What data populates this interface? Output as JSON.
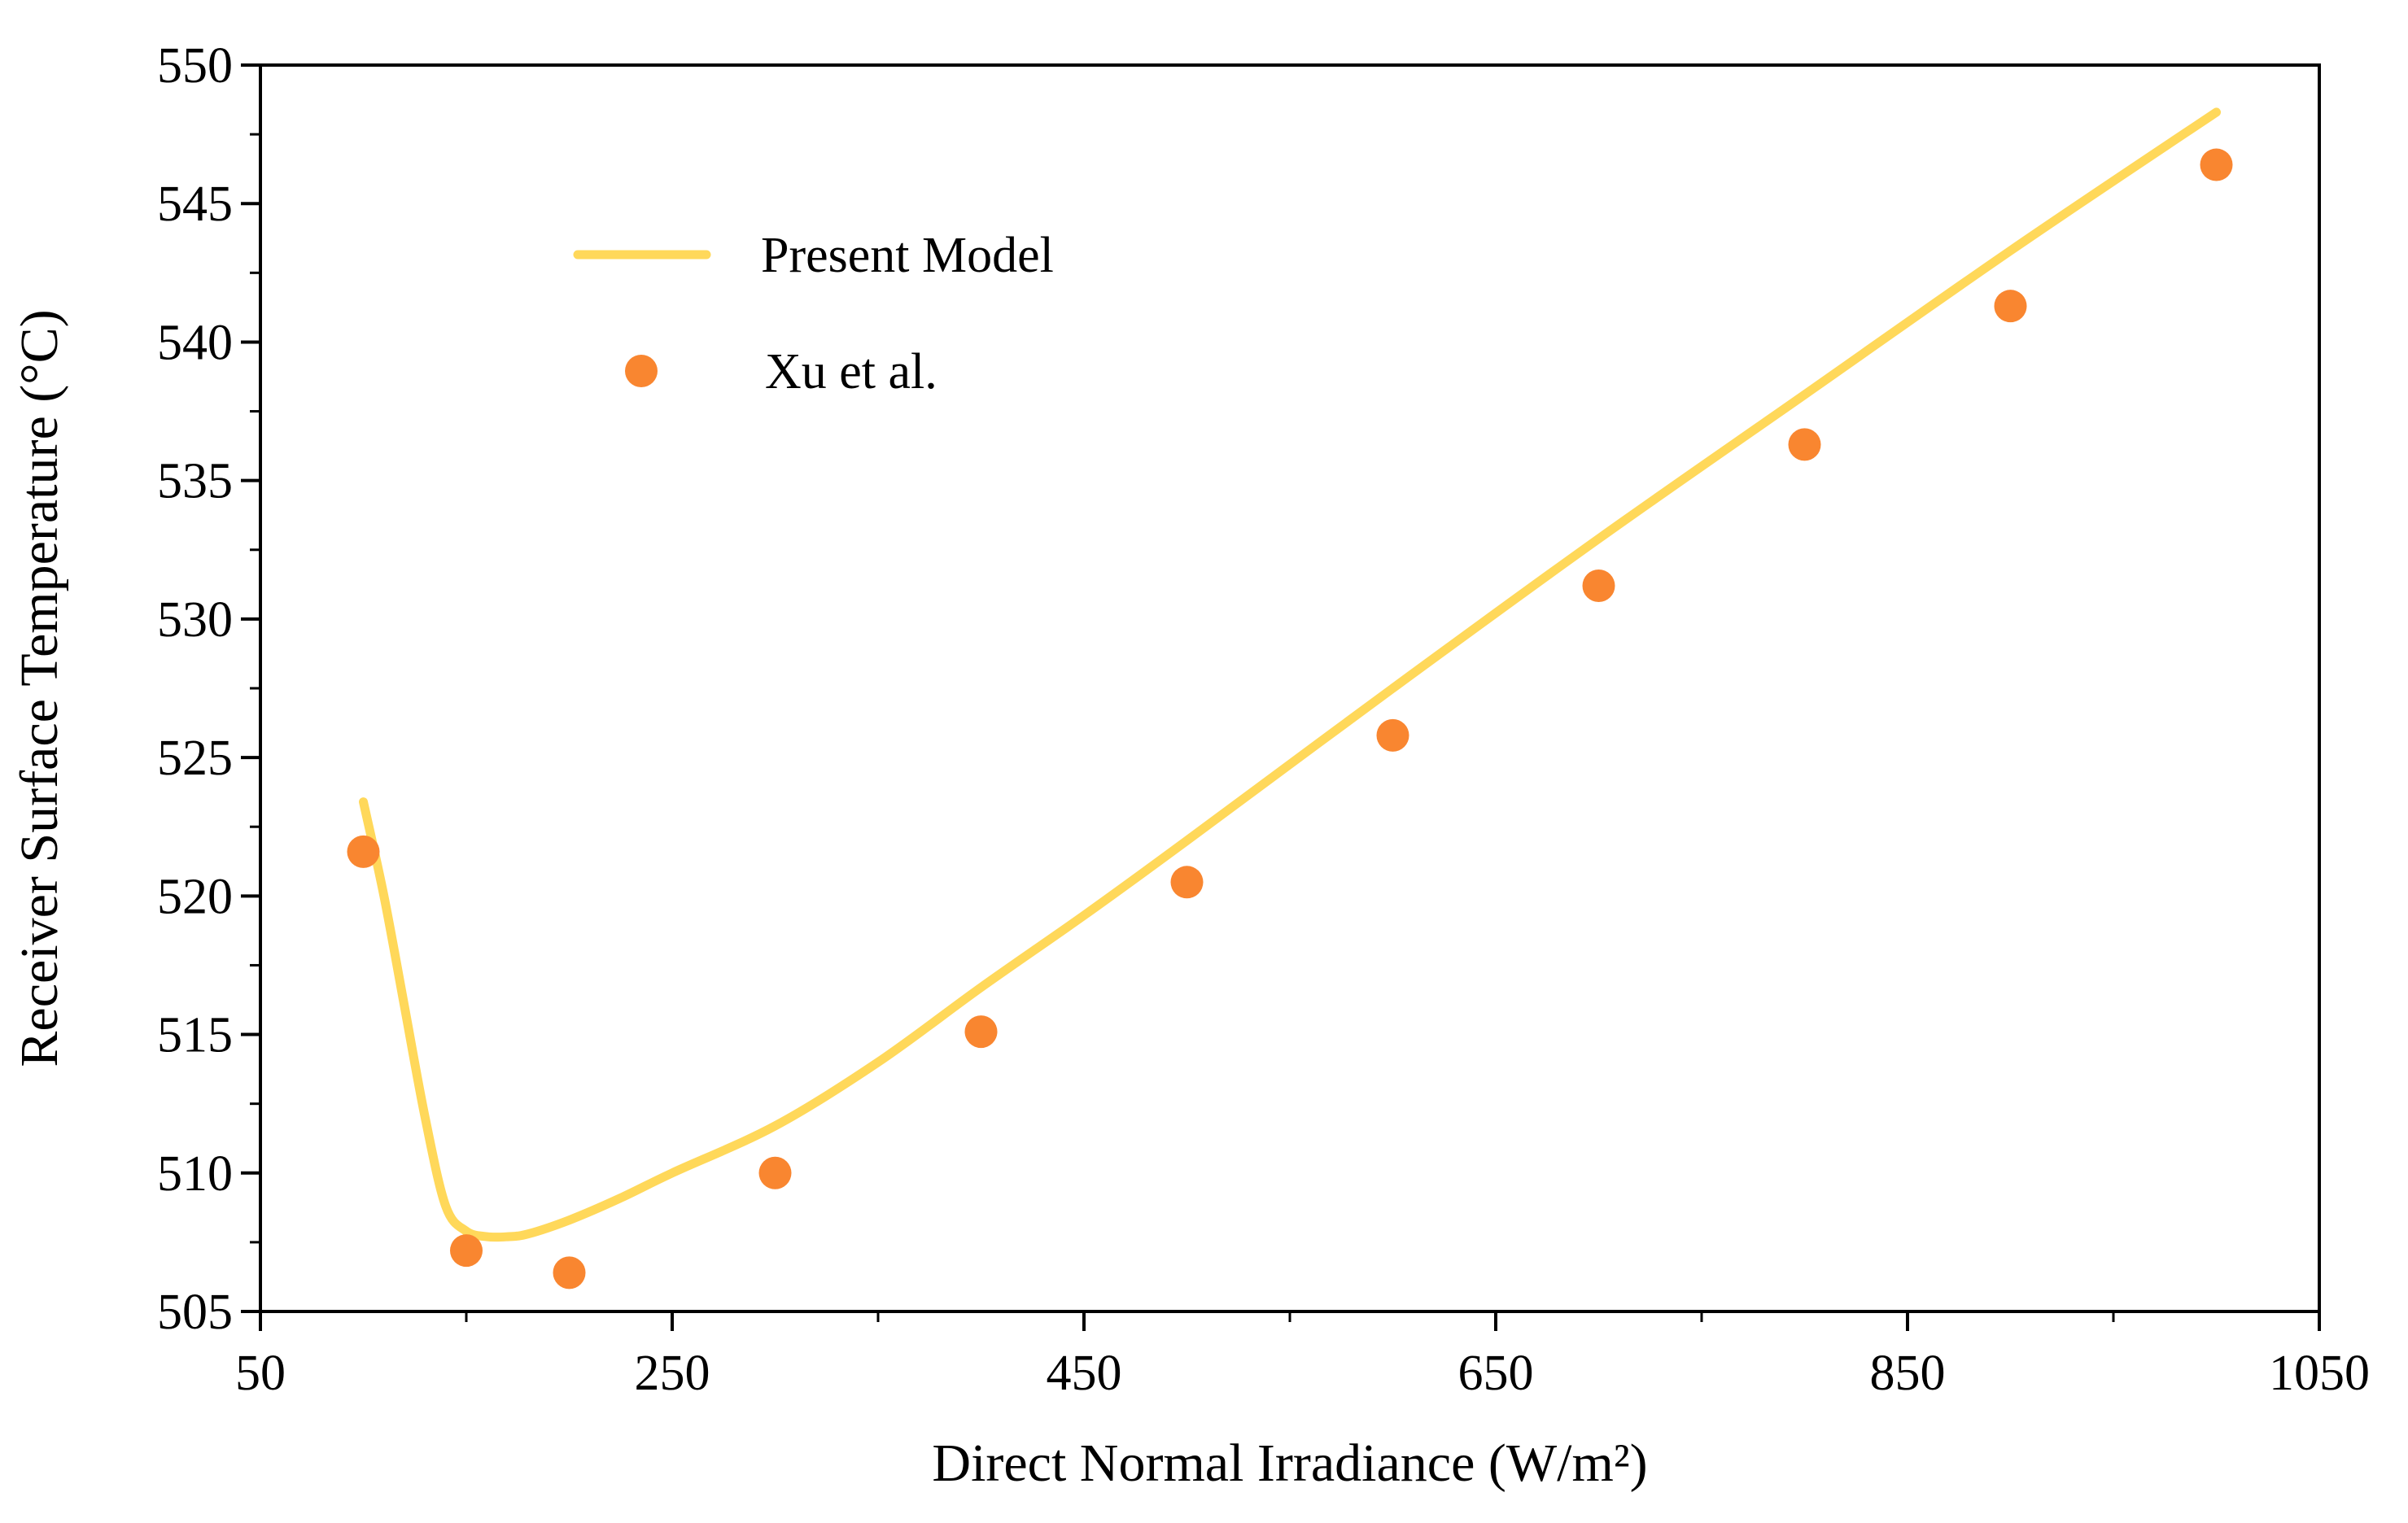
{
  "chart_data": {
    "type": "line",
    "title": "",
    "xlabel": "Direct Normal Irradiance (W/m²)",
    "ylabel": "Receiver Surface Temperature (°C)",
    "xlim": [
      50,
      1050
    ],
    "ylim": [
      505,
      550
    ],
    "xticks": [
      50,
      250,
      450,
      650,
      850,
      1050
    ],
    "yticks": [
      505,
      510,
      515,
      520,
      525,
      530,
      535,
      540,
      545,
      550
    ],
    "x_minor_step": 100,
    "y_minor_step": 2.5,
    "legend_position": "top-left",
    "series": [
      {
        "name": "Present Model",
        "style": "line",
        "color": "#FFD85A",
        "x": [
          100,
          110,
          120,
          130,
          140,
          150,
          160,
          170,
          180,
          200,
          225,
          250,
          300,
          350,
          400,
          450,
          500,
          600,
          700,
          800,
          900,
          1000
        ],
        "y": [
          523.4,
          520.0,
          516.0,
          512.0,
          508.8,
          507.9,
          507.7,
          507.7,
          507.8,
          508.3,
          509.1,
          510.0,
          511.7,
          514.0,
          516.7,
          519.3,
          522.0,
          527.5,
          532.9,
          538.1,
          543.3,
          548.3
        ]
      },
      {
        "name": "Xu et al.",
        "style": "scatter",
        "color": "#F98630",
        "x": [
          100,
          150,
          200,
          300,
          400,
          500,
          600,
          700,
          800,
          900,
          1000
        ],
        "y": [
          521.6,
          507.2,
          506.4,
          510.0,
          515.1,
          520.5,
          525.8,
          531.2,
          536.3,
          541.3,
          546.4
        ]
      }
    ]
  }
}
